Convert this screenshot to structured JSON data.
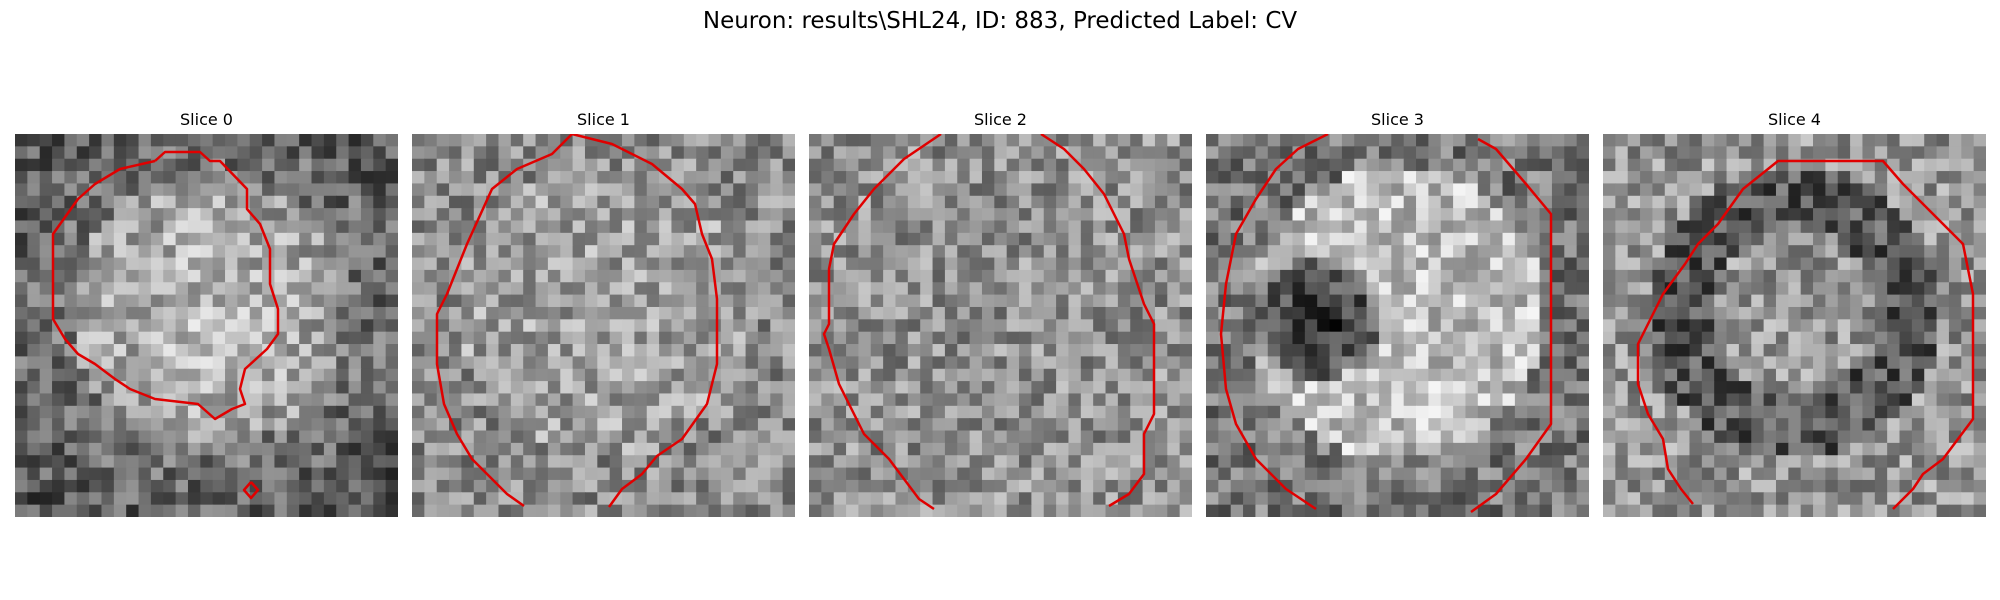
{
  "figure": {
    "title": "Neuron: results\\SHL24, ID: 883, Predicted Label: CV",
    "contour_color": "#e00000"
  },
  "panels": [
    {
      "title": "Slice 0",
      "seed": 11,
      "pattern": "bright-soma"
    },
    {
      "title": "Slice 1",
      "seed": 23,
      "pattern": "mixed"
    },
    {
      "title": "Slice 2",
      "seed": 37,
      "pattern": "noisy"
    },
    {
      "title": "Slice 3",
      "seed": 51,
      "pattern": "dark-spot-left"
    },
    {
      "title": "Slice 4",
      "seed": 67,
      "pattern": "dark-ring"
    }
  ]
}
